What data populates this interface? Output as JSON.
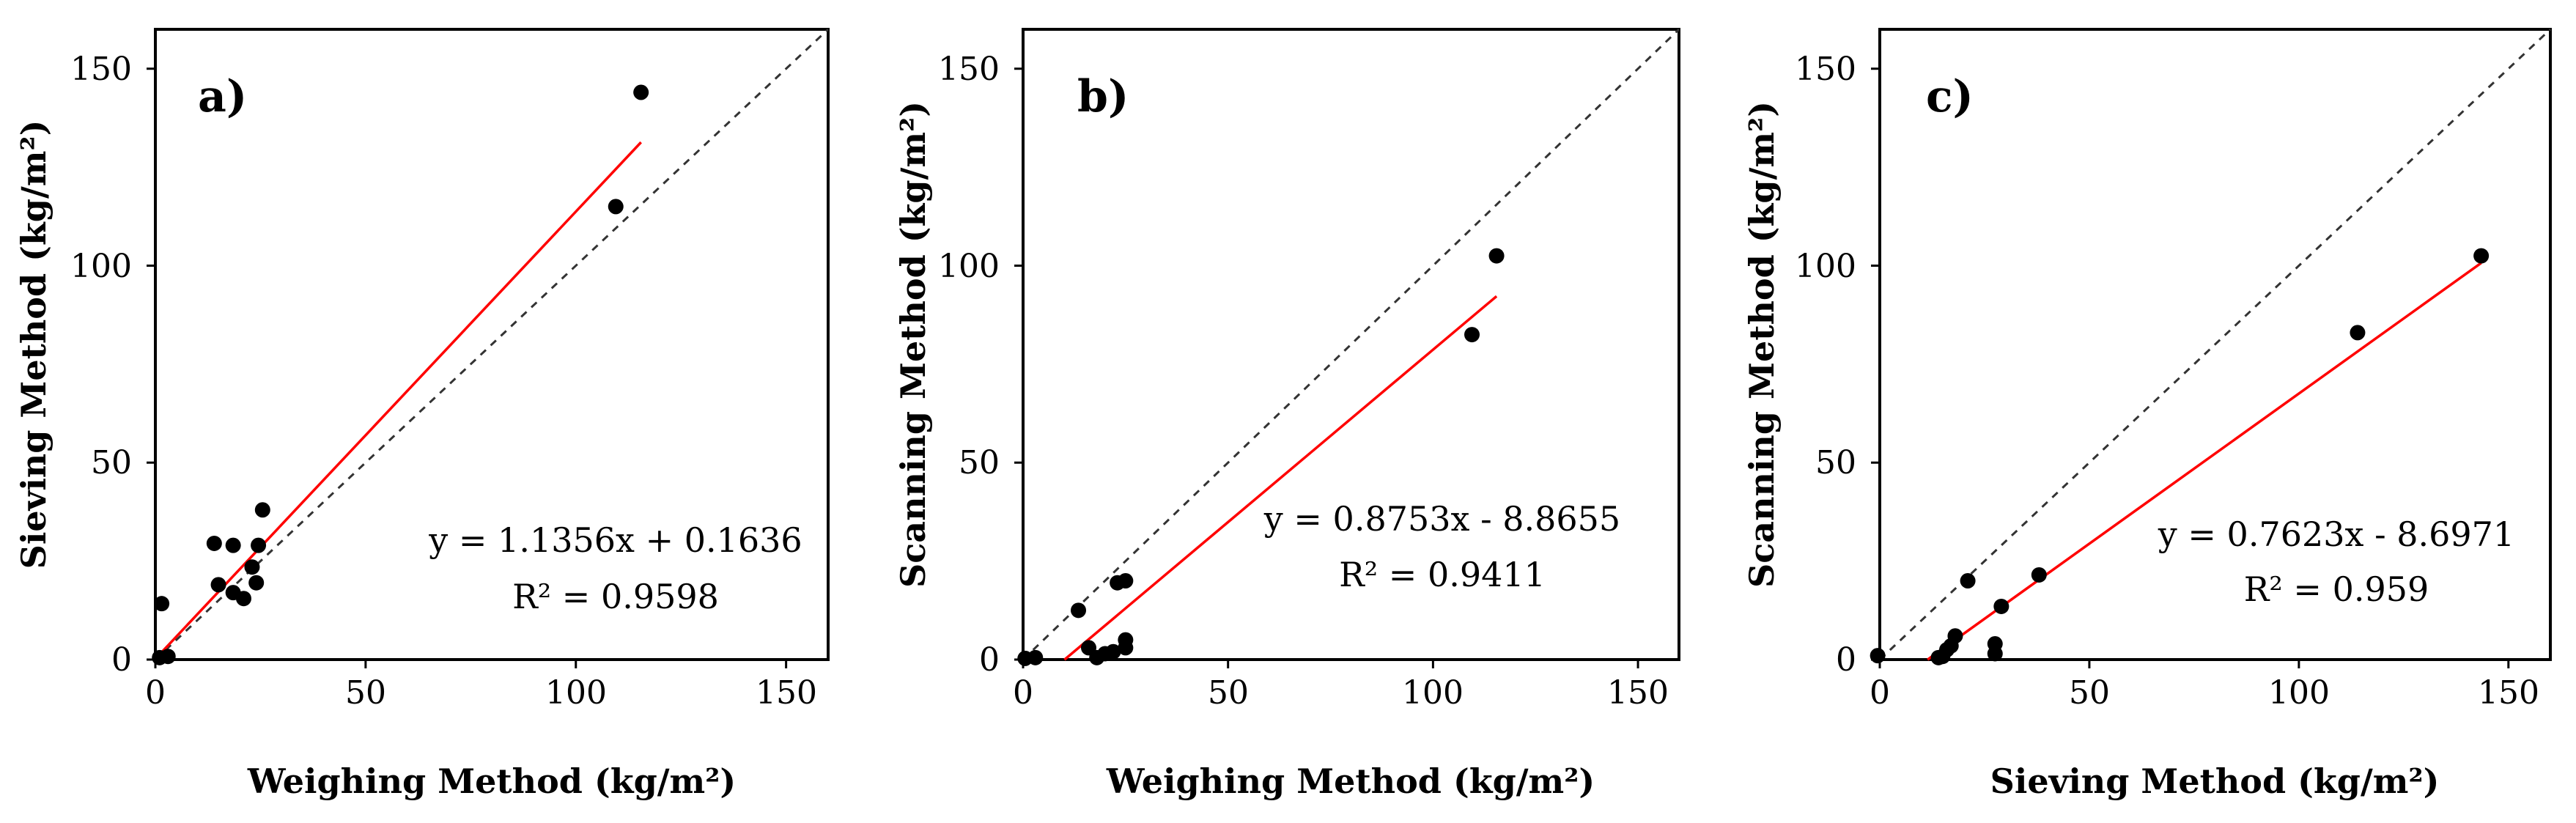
{
  "figure": {
    "background": "#ffffff",
    "point_color": "#000000",
    "fit_color": "#ff0000",
    "identity_color": "#333333"
  },
  "chart_data": [
    {
      "type": "scatter",
      "panel_label": "a)",
      "xlabel": "Weighing Method (kg/m²)",
      "ylabel": "Sieving Method (kg/m²)",
      "xlim": [
        0,
        160
      ],
      "ylim": [
        0,
        160
      ],
      "xticks": [
        0,
        50,
        100,
        150
      ],
      "yticks": [
        0,
        50,
        100,
        150
      ],
      "xtick_labels": [
        "0",
        "50",
        "100",
        "150"
      ],
      "ytick_labels": [
        "0",
        "50",
        "100",
        "150"
      ],
      "points": [
        [
          1.5,
          14.2
        ],
        [
          3,
          0.8
        ],
        [
          1,
          0.5
        ],
        [
          14,
          29.5
        ],
        [
          18.5,
          29
        ],
        [
          25.5,
          38
        ],
        [
          24.5,
          29
        ],
        [
          23,
          23.5
        ],
        [
          15,
          19
        ],
        [
          18.5,
          17
        ],
        [
          21,
          15.5
        ],
        [
          24,
          19.5
        ],
        [
          109.5,
          115
        ],
        [
          115.5,
          144
        ]
      ],
      "identity_line": {
        "from": [
          0,
          0
        ],
        "to": [
          160,
          160
        ]
      },
      "fit": {
        "slope": 1.1356,
        "intercept": 0.1636,
        "x_range": [
          1,
          115.5
        ]
      },
      "equation_text": "y = 1.1356x + 0.1636",
      "r2_text": "R² = 0.9598"
    },
    {
      "type": "scatter",
      "panel_label": "b)",
      "xlabel": "Weighing Method (kg/m²)",
      "ylabel": "Scanning Method (kg/m²)",
      "xlim": [
        0,
        160
      ],
      "ylim": [
        0,
        160
      ],
      "xticks": [
        0,
        50,
        100,
        150
      ],
      "yticks": [
        0,
        50,
        100,
        150
      ],
      "xtick_labels": [
        "0",
        "50",
        "100",
        "150"
      ],
      "ytick_labels": [
        "0",
        "50",
        "100",
        "150"
      ],
      "points": [
        [
          0.5,
          0.3
        ],
        [
          3,
          0.5
        ],
        [
          13.5,
          12.5
        ],
        [
          16,
          3
        ],
        [
          18,
          0.5
        ],
        [
          20,
          1.5
        ],
        [
          22,
          2
        ],
        [
          23,
          19.5
        ],
        [
          25,
          20
        ],
        [
          25,
          5
        ],
        [
          25,
          3
        ],
        [
          109.5,
          82.5
        ],
        [
          115.5,
          102.5
        ]
      ],
      "identity_line": {
        "from": [
          0,
          0
        ],
        "to": [
          160,
          160
        ]
      },
      "fit": {
        "slope": 0.8753,
        "intercept": -8.8655,
        "x_range": [
          10.1,
          115.5
        ]
      },
      "equation_text": "y = 0.8753x - 8.8655",
      "r2_text": "R² = 0.9411"
    },
    {
      "type": "scatter",
      "panel_label": "c)",
      "xlabel": "Sieving Method (kg/m²)",
      "ylabel": "Scanning Method (kg/m²)",
      "xlim": [
        0,
        160
      ],
      "ylim": [
        0,
        160
      ],
      "xticks": [
        0,
        50,
        100,
        150
      ],
      "yticks": [
        0,
        50,
        100,
        150
      ],
      "xtick_labels": [
        "0",
        "50",
        "100",
        "150"
      ],
      "ytick_labels": [
        "0",
        "50",
        "100",
        "150"
      ],
      "points": [
        [
          -0.5,
          1
        ],
        [
          14,
          0.5
        ],
        [
          15,
          0.8
        ],
        [
          16,
          2.5
        ],
        [
          17,
          3.5
        ],
        [
          18,
          6
        ],
        [
          21,
          20
        ],
        [
          27.5,
          4
        ],
        [
          27.5,
          1.5
        ],
        [
          29,
          13.5
        ],
        [
          38,
          21.5
        ],
        [
          114,
          83
        ],
        [
          143.5,
          102.5
        ]
      ],
      "identity_line": {
        "from": [
          0,
          0
        ],
        "to": [
          160,
          160
        ]
      },
      "fit": {
        "slope": 0.7623,
        "intercept": -8.6971,
        "x_range": [
          11.4,
          143.5
        ]
      },
      "equation_text": "y = 0.7623x - 8.6971",
      "r2_text": "R² = 0.959"
    }
  ]
}
